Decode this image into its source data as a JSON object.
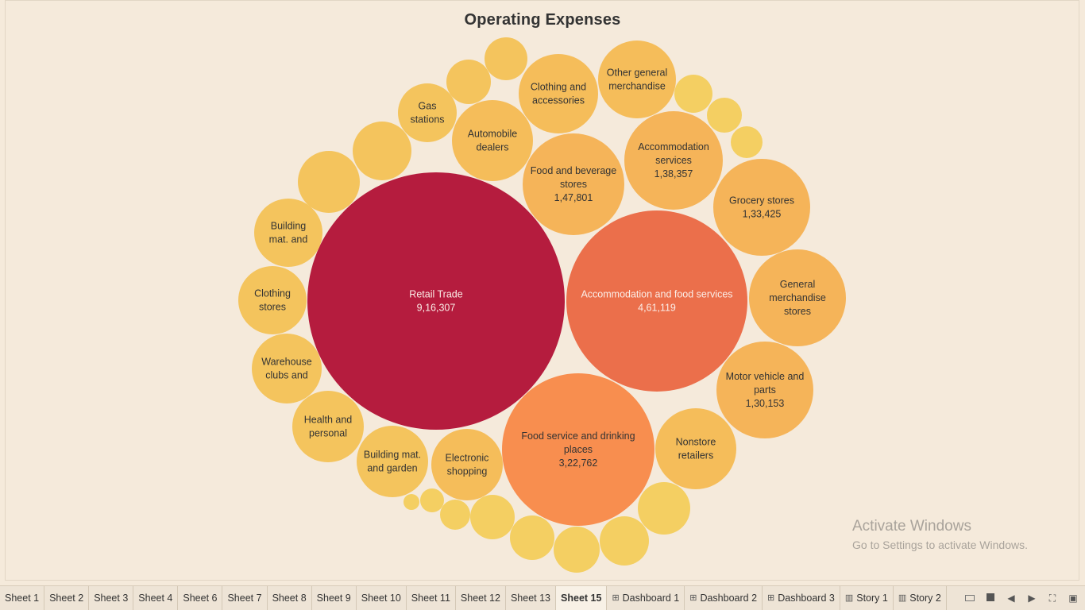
{
  "title": "Operating Expenses",
  "watermark": {
    "line1": "Activate Windows",
    "line2": "Go to Settings to activate Windows."
  },
  "tabs": [
    {
      "label": "Sheet 1",
      "type": "sheet"
    },
    {
      "label": "Sheet 2",
      "type": "sheet"
    },
    {
      "label": "Sheet 3",
      "type": "sheet"
    },
    {
      "label": "Sheet 4",
      "type": "sheet"
    },
    {
      "label": "Sheet 6",
      "type": "sheet"
    },
    {
      "label": "Sheet 7",
      "type": "sheet"
    },
    {
      "label": "Sheet 8",
      "type": "sheet"
    },
    {
      "label": "Sheet 9",
      "type": "sheet"
    },
    {
      "label": "Sheet 10",
      "type": "sheet"
    },
    {
      "label": "Sheet 11",
      "type": "sheet"
    },
    {
      "label": "Sheet 12",
      "type": "sheet"
    },
    {
      "label": "Sheet 13",
      "type": "sheet"
    },
    {
      "label": "Sheet 15",
      "type": "sheet",
      "active": true
    },
    {
      "label": "Dashboard 1",
      "type": "dashboard"
    },
    {
      "label": "Dashboard 2",
      "type": "dashboard"
    },
    {
      "label": "Dashboard 3",
      "type": "dashboard"
    },
    {
      "label": "Story 1",
      "type": "story"
    },
    {
      "label": "Story 2",
      "type": "story"
    }
  ],
  "controls": [
    "grid-view-icon",
    "presentation-square-icon",
    "previous-icon",
    "next-icon",
    "fullscreen-icon",
    "present-icon"
  ],
  "colors": {
    "background": "#f5eadb",
    "largest": "#b51c3e",
    "second": "#eb6f4b",
    "third": "#f88e4f",
    "mid": "#f5b459",
    "small": "#f4c45d"
  },
  "chart_data": {
    "type": "bubble",
    "title": "Operating Expenses",
    "bubbles": [
      {
        "label": "Retail Trade",
        "value": 916307,
        "value_text": "9,16,307",
        "color": "#b51c3e"
      },
      {
        "label": "Accommodation and food services",
        "value": 461119,
        "value_text": "4,61,119",
        "color": "#eb6f4b"
      },
      {
        "label": "Food service and drinking places",
        "value": 322762,
        "value_text": "3,22,762",
        "color": "#f88e4f"
      },
      {
        "label": "Food and beverage stores",
        "value": 147801,
        "value_text": "1,47,801",
        "color": "#f5b459"
      },
      {
        "label": "Accommodation services",
        "value": 138357,
        "value_text": "1,38,357",
        "color": "#f5b459"
      },
      {
        "label": "Grocery stores",
        "value": 133425,
        "value_text": "1,33,425",
        "color": "#f5b459"
      },
      {
        "label": "Motor vehicle and parts",
        "value": 130153,
        "value_text": "1,30,153",
        "color": "#f5b459"
      },
      {
        "label": "General merchandise stores",
        "value": 128000,
        "value_text": "",
        "color": "#f5b459"
      },
      {
        "label": "Clothing and accessories",
        "value": 90000,
        "value_text": "",
        "color": "#f5bd5a"
      },
      {
        "label": "Other general merchandise",
        "value": 82000,
        "value_text": "",
        "color": "#f5bd5a"
      },
      {
        "label": "Automobile dealers",
        "value": 88000,
        "value_text": "",
        "color": "#f5bd5a"
      },
      {
        "label": "Nonstore retailers",
        "value": 92000,
        "value_text": "",
        "color": "#f5bd5a"
      },
      {
        "label": "Electronic shopping",
        "value": 72000,
        "value_text": "",
        "color": "#f5bd5a"
      },
      {
        "label": "Building mat. and garden",
        "value": 70000,
        "value_text": "",
        "color": "#f4c45d"
      },
      {
        "label": "Health and personal",
        "value": 70000,
        "value_text": "",
        "color": "#f4c45d"
      },
      {
        "label": "Warehouse clubs and",
        "value": 65000,
        "value_text": "",
        "color": "#f4c45d"
      },
      {
        "label": "Clothing stores",
        "value": 62000,
        "value_text": "",
        "color": "#f4c45d"
      },
      {
        "label": "Building mat. and",
        "value": 64000,
        "value_text": "",
        "color": "#f4c45d"
      },
      {
        "label": "Gas stations",
        "value": 48000,
        "value_text": "",
        "color": "#f4c45d"
      },
      {
        "label": "",
        "value": 50000,
        "value_text": "",
        "color": "#f4c45d"
      },
      {
        "label": "",
        "value": 46000,
        "value_text": "",
        "color": "#f4c45d"
      },
      {
        "label": "",
        "value": 28000,
        "value_text": "",
        "color": "#f4c45d"
      },
      {
        "label": "",
        "value": 25000,
        "value_text": "",
        "color": "#f4c45d"
      },
      {
        "label": "",
        "value": 19000,
        "value_text": "",
        "color": "#f4cf62"
      },
      {
        "label": "",
        "value": 15000,
        "value_text": "",
        "color": "#f4cf62"
      },
      {
        "label": "",
        "value": 14000,
        "value_text": "",
        "color": "#f4cf62"
      },
      {
        "label": "",
        "value": 35000,
        "value_text": "",
        "color": "#f4cf62"
      },
      {
        "label": "",
        "value": 38000,
        "value_text": "",
        "color": "#f4cf62"
      },
      {
        "label": "",
        "value": 34000,
        "value_text": "",
        "color": "#f4cf62"
      },
      {
        "label": "",
        "value": 33000,
        "value_text": "",
        "color": "#f4cf62"
      },
      {
        "label": "",
        "value": 31000,
        "value_text": "",
        "color": "#f4cf62"
      },
      {
        "label": "",
        "value": 22000,
        "value_text": "",
        "color": "#f4cf62"
      },
      {
        "label": "",
        "value": 8000,
        "value_text": "",
        "color": "#f4cf62"
      },
      {
        "label": "",
        "value": 4000,
        "value_text": "",
        "color": "#f4cf62"
      },
      {
        "label": "",
        "value": 45000,
        "value_text": "",
        "color": "#f4cf62"
      }
    ]
  }
}
